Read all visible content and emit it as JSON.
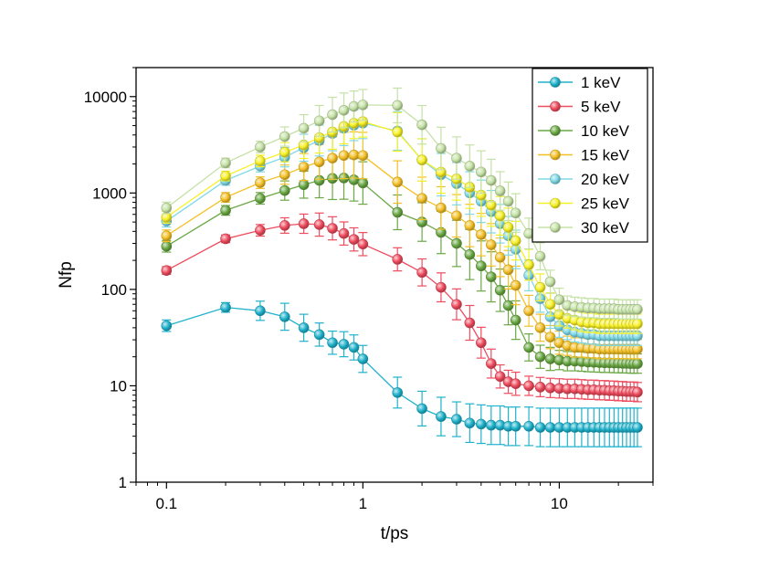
{
  "chart_data": {
    "type": "line",
    "title": "",
    "xlabel": "t/ps",
    "ylabel": "Nfp",
    "xscale": "log",
    "yscale": "log",
    "xlim": [
      0.07,
      30
    ],
    "ylim": [
      1,
      20000
    ],
    "x_ticks": [
      {
        "value": 0.1,
        "label": "0.1"
      },
      {
        "value": 1,
        "label": "1"
      },
      {
        "value": 10,
        "label": "10"
      }
    ],
    "y_ticks": [
      {
        "value": 1,
        "label": "1"
      },
      {
        "value": 10,
        "label": "10"
      },
      {
        "value": 100,
        "label": "100"
      },
      {
        "value": 1000,
        "label": "1000"
      },
      {
        "value": 10000,
        "label": "10000"
      }
    ],
    "legend_position": "top-right",
    "x": [
      0.1,
      0.2,
      0.3,
      0.4,
      0.5,
      0.6,
      0.7,
      0.8,
      0.9,
      1,
      1.5,
      2,
      2.5,
      3,
      3.5,
      4,
      4.5,
      5,
      5.5,
      6,
      7,
      8,
      9,
      10,
      11,
      12,
      13,
      14,
      15,
      16,
      17,
      18,
      19,
      20,
      21,
      22,
      23,
      24,
      25
    ],
    "series": [
      {
        "name": "1 keV",
        "color": "#1fb2cc",
        "values": [
          42,
          65,
          60,
          52,
          40,
          34,
          28,
          27,
          25,
          19,
          8.5,
          5.8,
          4.8,
          4.5,
          4.1,
          4.0,
          3.9,
          3.9,
          3.8,
          3.8,
          3.8,
          3.7,
          3.7,
          3.7,
          3.7,
          3.7,
          3.7,
          3.7,
          3.7,
          3.7,
          3.7,
          3.7,
          3.7,
          3.7,
          3.7,
          3.7,
          3.7,
          3.7,
          3.7
        ],
        "err": [
          0.06,
          0.05,
          0.1,
          0.14,
          0.14,
          0.12,
          0.12,
          0.13,
          0.13,
          0.14,
          0.16,
          0.18,
          0.2,
          0.18,
          0.2,
          0.2,
          0.2,
          0.2,
          0.2,
          0.2,
          0.2,
          0.2,
          0.2,
          0.2,
          0.2,
          0.2,
          0.2,
          0.2,
          0.2,
          0.2,
          0.2,
          0.2,
          0.2,
          0.2,
          0.2,
          0.2,
          0.2,
          0.2,
          0.2
        ]
      },
      {
        "name": "5 keV",
        "color": "#ef4c5e",
        "values": [
          157,
          335,
          410,
          460,
          480,
          470,
          430,
          380,
          330,
          295,
          205,
          150,
          105,
          70,
          45,
          28,
          17,
          12.5,
          11,
          10.5,
          10,
          9.7,
          9.5,
          9.4,
          9.3,
          9.3,
          9.2,
          9.1,
          9.1,
          9.0,
          9.0,
          8.9,
          8.9,
          8.8,
          8.8,
          8.7,
          8.7,
          8.7,
          8.6
        ],
        "err": [
          0.04,
          0.04,
          0.06,
          0.08,
          0.1,
          0.12,
          0.12,
          0.12,
          0.12,
          0.12,
          0.12,
          0.14,
          0.15,
          0.16,
          0.18,
          0.16,
          0.15,
          0.12,
          0.12,
          0.12,
          0.1,
          0.1,
          0.1,
          0.1,
          0.1,
          0.1,
          0.1,
          0.1,
          0.1,
          0.1,
          0.1,
          0.1,
          0.1,
          0.1,
          0.1,
          0.1,
          0.1,
          0.1,
          0.1
        ]
      },
      {
        "name": "10 keV",
        "color": "#6aa844",
        "values": [
          280,
          660,
          880,
          1060,
          1220,
          1350,
          1420,
          1430,
          1370,
          1270,
          630,
          500,
          390,
          300,
          230,
          175,
          135,
          98,
          68,
          48,
          25,
          20,
          19,
          18.5,
          18,
          18,
          17.8,
          17.6,
          17.5,
          17.4,
          17.3,
          17.3,
          17.2,
          17.2,
          17.1,
          17.1,
          17.0,
          17.0,
          17.0
        ],
        "err": [
          0.06,
          0.05,
          0.06,
          0.1,
          0.14,
          0.18,
          0.22,
          0.22,
          0.22,
          0.22,
          0.18,
          0.2,
          0.22,
          0.24,
          0.26,
          0.26,
          0.26,
          0.22,
          0.2,
          0.2,
          0.14,
          0.12,
          0.12,
          0.1,
          0.1,
          0.1,
          0.1,
          0.1,
          0.1,
          0.1,
          0.1,
          0.1,
          0.1,
          0.1,
          0.1,
          0.1,
          0.1,
          0.1,
          0.1
        ]
      },
      {
        "name": "15 keV",
        "color": "#f4c027",
        "values": [
          360,
          900,
          1280,
          1550,
          1860,
          2100,
          2300,
          2450,
          2480,
          2450,
          1300,
          880,
          700,
          580,
          460,
          370,
          290,
          215,
          160,
          110,
          60,
          40,
          32,
          28,
          26,
          25,
          25,
          24.5,
          24.5,
          24,
          24,
          24,
          24,
          24,
          24,
          24,
          24,
          24,
          24
        ],
        "err": [
          0.06,
          0.05,
          0.06,
          0.1,
          0.14,
          0.18,
          0.22,
          0.24,
          0.24,
          0.24,
          0.22,
          0.22,
          0.22,
          0.22,
          0.22,
          0.22,
          0.22,
          0.2,
          0.2,
          0.2,
          0.16,
          0.14,
          0.12,
          0.12,
          0.1,
          0.1,
          0.1,
          0.1,
          0.1,
          0.1,
          0.1,
          0.1,
          0.1,
          0.1,
          0.1,
          0.1,
          0.1,
          0.1,
          0.1
        ]
      },
      {
        "name": "20 keV",
        "color": "#7fd8e6",
        "values": [
          510,
          1350,
          1900,
          2350,
          2950,
          3500,
          4150,
          4700,
          5050,
          5300,
          4400,
          2200,
          1550,
          1250,
          1000,
          820,
          640,
          480,
          360,
          260,
          140,
          80,
          52,
          42,
          38,
          36,
          35,
          34,
          34,
          33,
          33,
          33,
          33,
          33,
          33,
          33,
          33,
          33,
          33
        ],
        "err": [
          0.06,
          0.05,
          0.06,
          0.1,
          0.14,
          0.16,
          0.18,
          0.18,
          0.16,
          0.16,
          0.2,
          0.22,
          0.22,
          0.22,
          0.22,
          0.22,
          0.22,
          0.2,
          0.2,
          0.2,
          0.16,
          0.14,
          0.12,
          0.12,
          0.1,
          0.1,
          0.1,
          0.1,
          0.1,
          0.1,
          0.1,
          0.1,
          0.1,
          0.1,
          0.1,
          0.1,
          0.1,
          0.1,
          0.1
        ]
      },
      {
        "name": "25 keV",
        "color": "#f7f027",
        "values": [
          560,
          1500,
          2150,
          2650,
          3150,
          3750,
          4300,
          4900,
          5300,
          5500,
          4300,
          2200,
          1650,
          1400,
          1150,
          950,
          750,
          580,
          440,
          320,
          180,
          105,
          70,
          55,
          50,
          48,
          46,
          45,
          45,
          44,
          44,
          44,
          44,
          44,
          44,
          44,
          44,
          44,
          44
        ],
        "err": [
          0.06,
          0.05,
          0.06,
          0.1,
          0.14,
          0.16,
          0.18,
          0.18,
          0.16,
          0.16,
          0.2,
          0.22,
          0.22,
          0.22,
          0.22,
          0.22,
          0.22,
          0.2,
          0.2,
          0.2,
          0.16,
          0.14,
          0.12,
          0.12,
          0.1,
          0.1,
          0.1,
          0.1,
          0.1,
          0.1,
          0.1,
          0.1,
          0.1,
          0.1,
          0.1,
          0.1,
          0.1,
          0.1,
          0.1
        ]
      },
      {
        "name": "30 keV",
        "color": "#c5e2a6",
        "values": [
          700,
          2050,
          3000,
          3850,
          4700,
          5600,
          6500,
          7200,
          7900,
          8200,
          8100,
          5100,
          2900,
          2300,
          1900,
          1650,
          1350,
          1050,
          820,
          620,
          380,
          220,
          120,
          78,
          68,
          66,
          65,
          64,
          64,
          63,
          63,
          63,
          63,
          62,
          62,
          62,
          62,
          62,
          62
        ],
        "err": [
          0.06,
          0.05,
          0.06,
          0.1,
          0.14,
          0.16,
          0.18,
          0.18,
          0.16,
          0.16,
          0.18,
          0.2,
          0.22,
          0.22,
          0.22,
          0.22,
          0.22,
          0.2,
          0.2,
          0.2,
          0.16,
          0.14,
          0.12,
          0.12,
          0.1,
          0.1,
          0.1,
          0.1,
          0.1,
          0.1,
          0.1,
          0.1,
          0.1,
          0.1,
          0.1,
          0.1,
          0.1,
          0.1,
          0.1
        ]
      }
    ]
  }
}
